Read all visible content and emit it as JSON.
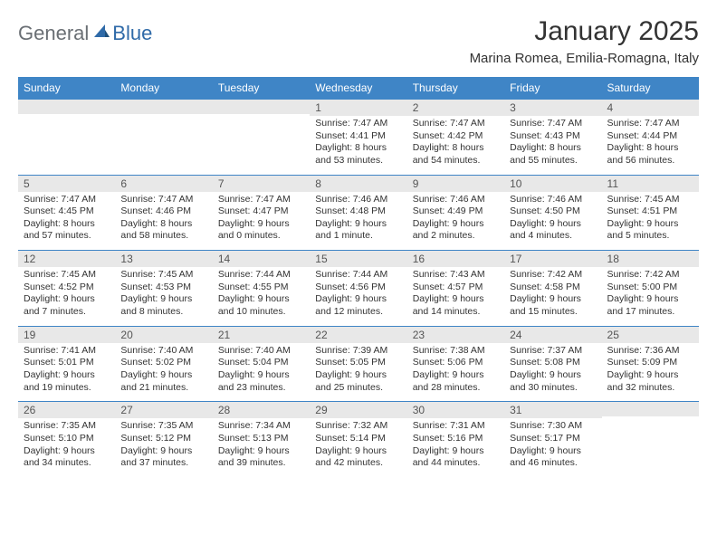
{
  "logo": {
    "word1": "General",
    "word2": "Blue"
  },
  "title": "January 2025",
  "location": "Marina Romea, Emilia-Romagna, Italy",
  "colors": {
    "header_bg": "#3f85c6",
    "header_text": "#ffffff",
    "daynum_bg": "#e8e8e8",
    "border": "#3f85c6",
    "body_text": "#333333",
    "logo_gray": "#6a6f74",
    "logo_blue": "#2f6aa8",
    "background": "#ffffff"
  },
  "typography": {
    "title_fontsize": 30,
    "location_fontsize": 15,
    "dayheader_fontsize": 12,
    "daynum_fontsize": 12,
    "cell_fontsize": 10.5
  },
  "day_headers": [
    "Sunday",
    "Monday",
    "Tuesday",
    "Wednesday",
    "Thursday",
    "Friday",
    "Saturday"
  ],
  "weeks": [
    [
      {
        "n": "",
        "sr": "",
        "ss": "",
        "dl": ""
      },
      {
        "n": "",
        "sr": "",
        "ss": "",
        "dl": ""
      },
      {
        "n": "",
        "sr": "",
        "ss": "",
        "dl": ""
      },
      {
        "n": "1",
        "sr": "Sunrise: 7:47 AM",
        "ss": "Sunset: 4:41 PM",
        "dl": "Daylight: 8 hours and 53 minutes."
      },
      {
        "n": "2",
        "sr": "Sunrise: 7:47 AM",
        "ss": "Sunset: 4:42 PM",
        "dl": "Daylight: 8 hours and 54 minutes."
      },
      {
        "n": "3",
        "sr": "Sunrise: 7:47 AM",
        "ss": "Sunset: 4:43 PM",
        "dl": "Daylight: 8 hours and 55 minutes."
      },
      {
        "n": "4",
        "sr": "Sunrise: 7:47 AM",
        "ss": "Sunset: 4:44 PM",
        "dl": "Daylight: 8 hours and 56 minutes."
      }
    ],
    [
      {
        "n": "5",
        "sr": "Sunrise: 7:47 AM",
        "ss": "Sunset: 4:45 PM",
        "dl": "Daylight: 8 hours and 57 minutes."
      },
      {
        "n": "6",
        "sr": "Sunrise: 7:47 AM",
        "ss": "Sunset: 4:46 PM",
        "dl": "Daylight: 8 hours and 58 minutes."
      },
      {
        "n": "7",
        "sr": "Sunrise: 7:47 AM",
        "ss": "Sunset: 4:47 PM",
        "dl": "Daylight: 9 hours and 0 minutes."
      },
      {
        "n": "8",
        "sr": "Sunrise: 7:46 AM",
        "ss": "Sunset: 4:48 PM",
        "dl": "Daylight: 9 hours and 1 minute."
      },
      {
        "n": "9",
        "sr": "Sunrise: 7:46 AM",
        "ss": "Sunset: 4:49 PM",
        "dl": "Daylight: 9 hours and 2 minutes."
      },
      {
        "n": "10",
        "sr": "Sunrise: 7:46 AM",
        "ss": "Sunset: 4:50 PM",
        "dl": "Daylight: 9 hours and 4 minutes."
      },
      {
        "n": "11",
        "sr": "Sunrise: 7:45 AM",
        "ss": "Sunset: 4:51 PM",
        "dl": "Daylight: 9 hours and 5 minutes."
      }
    ],
    [
      {
        "n": "12",
        "sr": "Sunrise: 7:45 AM",
        "ss": "Sunset: 4:52 PM",
        "dl": "Daylight: 9 hours and 7 minutes."
      },
      {
        "n": "13",
        "sr": "Sunrise: 7:45 AM",
        "ss": "Sunset: 4:53 PM",
        "dl": "Daylight: 9 hours and 8 minutes."
      },
      {
        "n": "14",
        "sr": "Sunrise: 7:44 AM",
        "ss": "Sunset: 4:55 PM",
        "dl": "Daylight: 9 hours and 10 minutes."
      },
      {
        "n": "15",
        "sr": "Sunrise: 7:44 AM",
        "ss": "Sunset: 4:56 PM",
        "dl": "Daylight: 9 hours and 12 minutes."
      },
      {
        "n": "16",
        "sr": "Sunrise: 7:43 AM",
        "ss": "Sunset: 4:57 PM",
        "dl": "Daylight: 9 hours and 14 minutes."
      },
      {
        "n": "17",
        "sr": "Sunrise: 7:42 AM",
        "ss": "Sunset: 4:58 PM",
        "dl": "Daylight: 9 hours and 15 minutes."
      },
      {
        "n": "18",
        "sr": "Sunrise: 7:42 AM",
        "ss": "Sunset: 5:00 PM",
        "dl": "Daylight: 9 hours and 17 minutes."
      }
    ],
    [
      {
        "n": "19",
        "sr": "Sunrise: 7:41 AM",
        "ss": "Sunset: 5:01 PM",
        "dl": "Daylight: 9 hours and 19 minutes."
      },
      {
        "n": "20",
        "sr": "Sunrise: 7:40 AM",
        "ss": "Sunset: 5:02 PM",
        "dl": "Daylight: 9 hours and 21 minutes."
      },
      {
        "n": "21",
        "sr": "Sunrise: 7:40 AM",
        "ss": "Sunset: 5:04 PM",
        "dl": "Daylight: 9 hours and 23 minutes."
      },
      {
        "n": "22",
        "sr": "Sunrise: 7:39 AM",
        "ss": "Sunset: 5:05 PM",
        "dl": "Daylight: 9 hours and 25 minutes."
      },
      {
        "n": "23",
        "sr": "Sunrise: 7:38 AM",
        "ss": "Sunset: 5:06 PM",
        "dl": "Daylight: 9 hours and 28 minutes."
      },
      {
        "n": "24",
        "sr": "Sunrise: 7:37 AM",
        "ss": "Sunset: 5:08 PM",
        "dl": "Daylight: 9 hours and 30 minutes."
      },
      {
        "n": "25",
        "sr": "Sunrise: 7:36 AM",
        "ss": "Sunset: 5:09 PM",
        "dl": "Daylight: 9 hours and 32 minutes."
      }
    ],
    [
      {
        "n": "26",
        "sr": "Sunrise: 7:35 AM",
        "ss": "Sunset: 5:10 PM",
        "dl": "Daylight: 9 hours and 34 minutes."
      },
      {
        "n": "27",
        "sr": "Sunrise: 7:35 AM",
        "ss": "Sunset: 5:12 PM",
        "dl": "Daylight: 9 hours and 37 minutes."
      },
      {
        "n": "28",
        "sr": "Sunrise: 7:34 AM",
        "ss": "Sunset: 5:13 PM",
        "dl": "Daylight: 9 hours and 39 minutes."
      },
      {
        "n": "29",
        "sr": "Sunrise: 7:32 AM",
        "ss": "Sunset: 5:14 PM",
        "dl": "Daylight: 9 hours and 42 minutes."
      },
      {
        "n": "30",
        "sr": "Sunrise: 7:31 AM",
        "ss": "Sunset: 5:16 PM",
        "dl": "Daylight: 9 hours and 44 minutes."
      },
      {
        "n": "31",
        "sr": "Sunrise: 7:30 AM",
        "ss": "Sunset: 5:17 PM",
        "dl": "Daylight: 9 hours and 46 minutes."
      },
      {
        "n": "",
        "sr": "",
        "ss": "",
        "dl": ""
      }
    ]
  ]
}
